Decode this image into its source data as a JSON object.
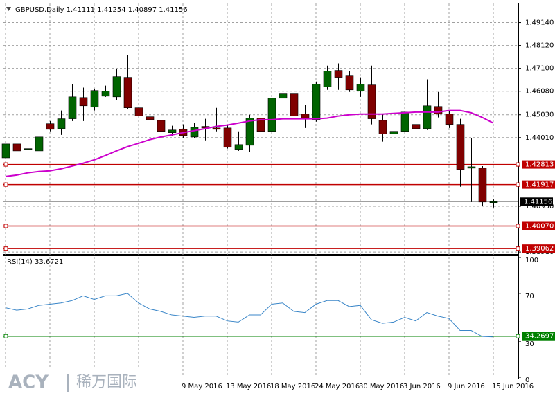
{
  "chart_data": [
    {
      "type": "candlestick",
      "title": "GBPUSD,Daily  1.41111 1.41254 1.40897 1.41156",
      "categories": [
        null,
        null,
        null,
        null,
        null,
        null,
        null,
        null,
        null,
        null,
        null,
        null,
        null,
        null,
        null,
        null,
        "9 May 2016",
        null,
        null,
        null,
        "13 May 2016",
        null,
        null,
        null,
        "18 May 2016",
        null,
        null,
        null,
        "24 May 2016",
        null,
        null,
        null,
        "30 May 2016",
        null,
        null,
        null,
        "3 Jun 2016",
        null,
        null,
        null,
        "9 Jun 2016",
        null,
        null,
        null,
        "15 Jun 2016"
      ],
      "open": [
        1.4311,
        1.4373,
        1.4349,
        1.4342,
        1.4463,
        1.4441,
        1.4485,
        1.458,
        1.4537,
        1.4586,
        1.4583,
        1.467,
        1.4534,
        1.4494,
        1.4478,
        1.4423,
        1.4438,
        1.4404,
        1.4451,
        1.4444,
        1.4444,
        1.4349,
        1.4367,
        1.4488,
        1.4429,
        1.4577,
        1.4596,
        1.4506,
        1.4481,
        1.4627,
        1.4701,
        1.4676,
        1.4608,
        1.4636,
        1.4478,
        1.4417,
        1.4429,
        1.446,
        1.4441,
        1.454,
        1.4506,
        1.446,
        1.4265,
        1.4265,
        1.41111
      ],
      "high": [
        1.442,
        1.4398,
        1.4444,
        1.4444,
        1.4475,
        1.4522,
        1.4639,
        1.4624,
        1.462,
        1.4633,
        1.4707,
        1.4769,
        1.4568,
        1.4528,
        1.4553,
        1.4454,
        1.446,
        1.4466,
        1.4485,
        1.4534,
        1.4457,
        1.4429,
        1.4503,
        1.4497,
        1.459,
        1.4661,
        1.4605,
        1.4546,
        1.4651,
        1.4722,
        1.4732,
        1.4698,
        1.467,
        1.4722,
        1.4506,
        1.4475,
        1.4583,
        1.4506,
        1.4661,
        1.4605,
        1.4522,
        1.4485,
        1.4398,
        1.4274,
        1.41254
      ],
      "low": [
        1.4299,
        1.4336,
        1.4342,
        1.433,
        1.4429,
        1.4413,
        1.4475,
        1.4475,
        1.4522,
        1.4583,
        1.4568,
        1.4528,
        1.446,
        1.4444,
        1.4423,
        1.4407,
        1.4398,
        1.4398,
        1.4389,
        1.4429,
        1.4352,
        1.4342,
        1.4336,
        1.4423,
        1.4413,
        1.4568,
        1.4485,
        1.4444,
        1.4472,
        1.4614,
        1.4614,
        1.4605,
        1.4583,
        1.446,
        1.4383,
        1.4404,
        1.441,
        1.4358,
        1.4435,
        1.4491,
        1.4444,
        1.4182,
        1.4114,
        1.4095,
        1.40897
      ],
      "close": [
        1.4373,
        1.4342,
        1.4352,
        1.4404,
        1.4438,
        1.4485,
        1.4583,
        1.4543,
        1.4611,
        1.4608,
        1.4673,
        1.4534,
        1.4497,
        1.4481,
        1.4429,
        1.4435,
        1.441,
        1.4447,
        1.4444,
        1.4438,
        1.4358,
        1.437,
        1.4488,
        1.4429,
        1.4577,
        1.4596,
        1.4497,
        1.4485,
        1.4639,
        1.4698,
        1.467,
        1.4614,
        1.4639,
        1.4485,
        1.4417,
        1.4429,
        1.4515,
        1.4441,
        1.4543,
        1.4506,
        1.446,
        1.4259,
        1.4271,
        1.4114,
        1.41156
      ],
      "up_color": "#006400",
      "down_color": "#800000",
      "ma": {
        "color": "#cc00cc",
        "values": [
          1.4228,
          1.4234,
          1.4244,
          1.425,
          1.4253,
          1.4262,
          1.4274,
          1.4287,
          1.4302,
          1.4321,
          1.4342,
          1.4361,
          1.4376,
          1.4392,
          1.4404,
          1.4413,
          1.4423,
          1.4432,
          1.4441,
          1.4451,
          1.4457,
          1.4466,
          1.4475,
          1.4481,
          1.4481,
          1.4485,
          1.4485,
          1.4485,
          1.4485,
          1.4488,
          1.4497,
          1.4503,
          1.4506,
          1.4506,
          1.4506,
          1.4509,
          1.4512,
          1.4515,
          1.4515,
          1.4515,
          1.4522,
          1.4522,
          1.4512,
          1.4491,
          1.4466
        ]
      },
      "hlines": [
        1.42813,
        1.41917,
        {
          "value": 1.4007,
          "label": "1.40070"
        },
        1.39062
      ],
      "hline_color": "#c00000",
      "current": 1.41156,
      "ylim": [
        1.3882,
        1.4999
      ],
      "yticks": [
        {
          "value": 1.4914,
          "label": "1.49140"
        },
        {
          "value": 1.4812,
          "label": "1.48120"
        },
        {
          "value": 1.471,
          "label": "1.47100"
        },
        {
          "value": 1.4608,
          "label": "1.46080"
        },
        {
          "value": 1.4503,
          "label": "1.45030"
        },
        {
          "value": 1.4401,
          "label": "1.44010"
        },
        {
          "value": 1.4095,
          "label": "1.40950"
        },
        {
          "value": 1.3891,
          "label": "1.38910"
        }
      ],
      "grid": true
    },
    {
      "type": "line",
      "title": "RSI(14) 33.6721",
      "color": "#3a86c8",
      "values": [
        58,
        56,
        57,
        60,
        61,
        62,
        64,
        68,
        65,
        68,
        68,
        70,
        62,
        57,
        55,
        52,
        51,
        50,
        51,
        51,
        47,
        46,
        52,
        52,
        61,
        62,
        55,
        54,
        61,
        64,
        64,
        59,
        60,
        48,
        45,
        46,
        50,
        47,
        54,
        51,
        49,
        39,
        39,
        34,
        33.6721
      ],
      "level": 34.2697,
      "level_color": "#008000",
      "ylim": [
        0,
        100
      ],
      "yticks": [
        0,
        30,
        70,
        100
      ],
      "grid": true
    }
  ],
  "watermark": {
    "brand": "ACY",
    "name": "稀万国际"
  }
}
